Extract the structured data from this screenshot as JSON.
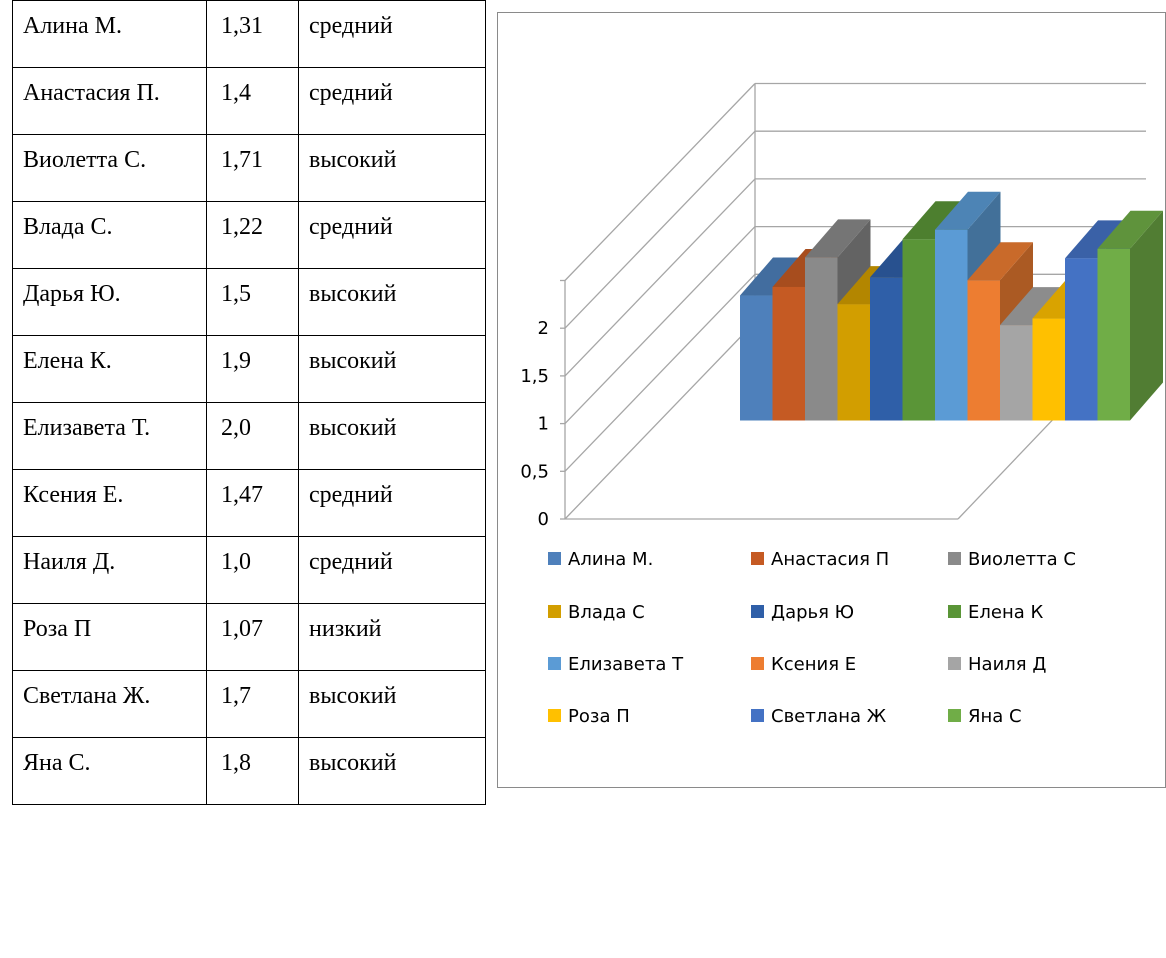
{
  "table": {
    "rows": [
      {
        "name": "Алина М.",
        "value": "1,31",
        "level": "средний"
      },
      {
        "name": "Анастасия П.",
        "value": "1,4",
        "level": "средний"
      },
      {
        "name": "Виолетта С.",
        "value": "1,71",
        "level": "высокий"
      },
      {
        "name": "Влада С.",
        "value": "1,22",
        "level": "средний"
      },
      {
        "name": "Дарья Ю.",
        "value": "1,5",
        "level": "высокий"
      },
      {
        "name": "Елена К.",
        "value": "1,9",
        "level": "высокий"
      },
      {
        "name": "Елизавета Т.",
        "value": "2,0",
        "level": "высокий"
      },
      {
        "name": "Ксения Е.",
        "value": "1,47",
        "level": "средний"
      },
      {
        "name": "Наиля Д.",
        "value": "1,0",
        "level": "средний"
      },
      {
        "name": "Роза П",
        "value": "1,07",
        "level": "низкий"
      },
      {
        "name": "Светлана Ж.",
        "value": "1,7",
        "level": "высокий"
      },
      {
        "name": "Яна С.",
        "value": "1,8",
        "level": "высокий"
      }
    ]
  },
  "chart_data": {
    "type": "bar",
    "style": "3d-clustered-column",
    "categories": [
      ""
    ],
    "series": [
      {
        "name": "Алина М.",
        "values": [
          1.31
        ],
        "color": "#4e80bb"
      },
      {
        "name": "Анастасия П",
        "values": [
          1.4
        ],
        "color": "#c55a23"
      },
      {
        "name": "Виолетта С",
        "values": [
          1.71
        ],
        "color": "#8a8a8a"
      },
      {
        "name": "Влада С",
        "values": [
          1.22
        ],
        "color": "#d29e00"
      },
      {
        "name": "Дарья Ю",
        "values": [
          1.5
        ],
        "color": "#2f5fa8"
      },
      {
        "name": "Елена К",
        "values": [
          1.9
        ],
        "color": "#5a9537"
      },
      {
        "name": "Елизавета Т",
        "values": [
          2.0
        ],
        "color": "#5b9bd5"
      },
      {
        "name": "Ксения Е",
        "values": [
          1.47
        ],
        "color": "#ed7d31"
      },
      {
        "name": "Наиля Д",
        "values": [
          1.0
        ],
        "color": "#a5a5a5"
      },
      {
        "name": "Роза П",
        "values": [
          1.07
        ],
        "color": "#ffc000"
      },
      {
        "name": "Светлана Ж",
        "values": [
          1.7
        ],
        "color": "#4472c4"
      },
      {
        "name": "Яна С",
        "values": [
          1.8
        ],
        "color": "#70ad47"
      }
    ],
    "y_ticks": [
      "0",
      "0,5",
      "1",
      "1,5",
      "2"
    ],
    "ylim": [
      0,
      2.5
    ],
    "grid": true,
    "legend_position": "bottom"
  }
}
